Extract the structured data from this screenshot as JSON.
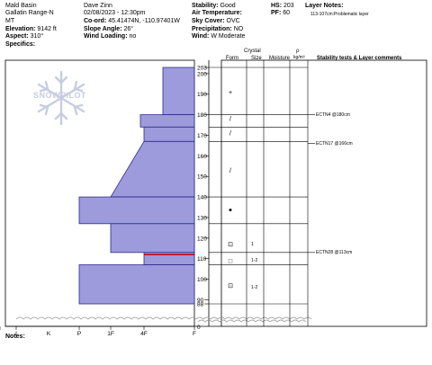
{
  "header": {
    "location": "Mald Basin",
    "range": "Gallatin Range-N",
    "state": "MT",
    "elevation_label": "Elevation:",
    "elevation": "9142 ft",
    "aspect_label": "Aspect:",
    "aspect": "310°",
    "specifics_label": "Specifics:",
    "observer": "Dave Zinn",
    "datetime": "02/08/2023 - 12:30pm",
    "coords_label": "Co-ord:",
    "coords": "45.41474N, -110.97401W",
    "slope_label": "Slope Angle:",
    "slope": "26°",
    "wind_load_label": "Wind Loading:",
    "wind_load": "no",
    "stability_label": "Stability:",
    "stability": "Good",
    "air_temp_label": "Air Temperature:",
    "sky_label": "Sky Cover:",
    "sky": "OVC",
    "precip_label": "Precipitation:",
    "precip": "NO",
    "wind_label": "Wind:",
    "wind": "W Moderate",
    "hs_label": "HS:",
    "hs": "203",
    "pf_label": "PF:",
    "pf": "60",
    "layer_notes_label": "Layer Notes:",
    "layer_note": "113-107cm:Problematic layer"
  },
  "watermark": "SNOWPILOT",
  "columns": {
    "crystal": "Crystal",
    "form": "Form",
    "size": "Size",
    "moisture": "Moisture",
    "rho": "ρ",
    "density_unit": "kg/m³",
    "comments": "Stability tests & Layer comments"
  },
  "hand_hardness_ticks": [
    "I",
    "K",
    "P",
    "1F",
    "4F",
    "F"
  ],
  "zero_label": "0",
  "height_ticks": [
    "203",
    "200",
    "190",
    "180",
    "170",
    "160",
    "150",
    "140",
    "130",
    "120",
    "110",
    "100",
    "90",
    "88"
  ],
  "stability_tests": [
    {
      "label": "ECTN4 @180cm",
      "height": 180
    },
    {
      "label": "ECTN17 @166cm",
      "height": 166
    },
    {
      "label": "ECTN28 @113cm",
      "height": 113
    }
  ],
  "layer_sizes": [
    {
      "size": "1",
      "height": 117
    },
    {
      "size": "1-2",
      "height": 109
    },
    {
      "size": "1-2",
      "height": 96
    }
  ],
  "notes_label": "Notes:",
  "colors": {
    "layer_fill": "#9d9bdc",
    "layer_stroke": "#2b2b8a",
    "problem_layer": "#c00000"
  },
  "chart_data": {
    "type": "area",
    "ylim": [
      88,
      203
    ],
    "layers": [
      {
        "top": 203,
        "bottom": 180,
        "hardness": "F+"
      },
      {
        "top": 180,
        "bottom": 174,
        "hardness": "4F+"
      },
      {
        "top": 174,
        "bottom": 167,
        "hardness": "4F"
      },
      {
        "top": 167,
        "bottom": 140,
        "hardness": "4F to 1F"
      },
      {
        "top": 140,
        "bottom": 127,
        "hardness": "P"
      },
      {
        "top": 127,
        "bottom": 113,
        "hardness": "1F"
      },
      {
        "top": 113,
        "bottom": 107,
        "hardness": "4F"
      },
      {
        "top": 107,
        "bottom": 88,
        "hardness": "P"
      }
    ],
    "problem_layer_height": 112,
    "grain_forms": [
      {
        "symbol": "+",
        "height": 191
      },
      {
        "symbol": "/",
        "height": 178
      },
      {
        "symbol": "/",
        "height": 171
      },
      {
        "symbol": "/",
        "height": 153
      },
      {
        "symbol": "●",
        "height": 134
      },
      {
        "symbol": "⊡",
        "height": 117
      },
      {
        "symbol": "□",
        "height": 109
      },
      {
        "symbol": "⊡",
        "height": 97
      }
    ]
  }
}
